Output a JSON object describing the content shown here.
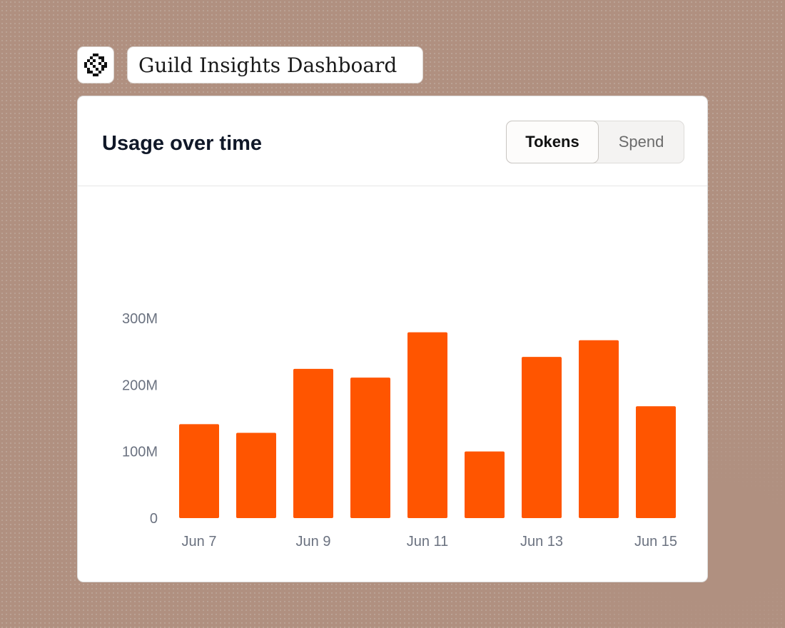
{
  "header": {
    "logo_icon": "pixel-sunburst-icon",
    "title": "Guild Insights Dashboard"
  },
  "card": {
    "title": "Usage over time",
    "toggle": {
      "options": [
        "Tokens",
        "Spend"
      ],
      "selected": "Tokens"
    }
  },
  "colors": {
    "bar": "#ff5500",
    "background": "#b09080"
  },
  "chart_data": {
    "type": "bar",
    "categories": [
      "Jun 7",
      "Jun 8",
      "Jun 9",
      "Jun 10",
      "Jun 11",
      "Jun 12",
      "Jun 13",
      "Jun 14",
      "Jun 15"
    ],
    "x_tick_labels": [
      "Jun 7",
      "",
      "Jun 9",
      "",
      "Jun 11",
      "",
      "Jun 13",
      "",
      "Jun 15"
    ],
    "series": [
      {
        "values": [
          141,
          128,
          224,
          211,
          279,
          100,
          242,
          267,
          168
        ]
      }
    ],
    "y_ticks": [
      0,
      100,
      200,
      300
    ],
    "y_tick_labels": [
      "0",
      "100M",
      "200M",
      "300M"
    ],
    "ylim": [
      0,
      300
    ],
    "grid": false,
    "legend": "none"
  }
}
